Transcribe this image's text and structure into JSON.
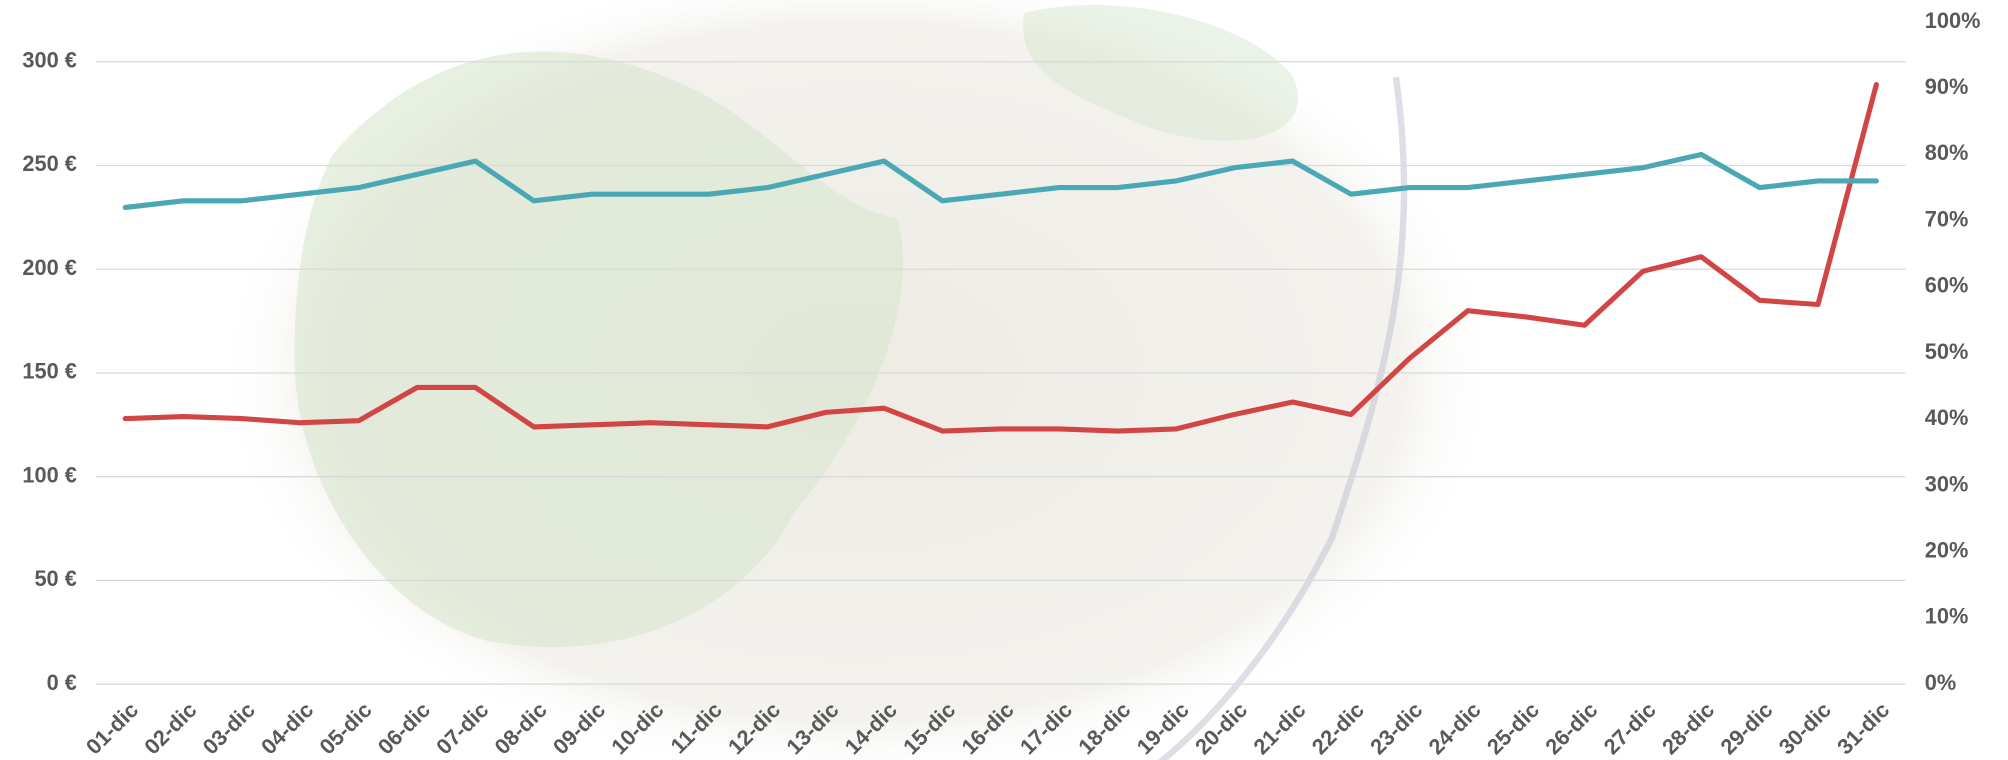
{
  "chart_data": {
    "type": "line",
    "categories": [
      "01-dic",
      "02-dic",
      "03-dic",
      "04-dic",
      "05-dic",
      "06-dic",
      "07-dic",
      "08-dic",
      "09-dic",
      "10-dic",
      "11-dic",
      "12-dic",
      "13-dic",
      "14-dic",
      "15-dic",
      "16-dic",
      "17-dic",
      "18-dic",
      "19-dic",
      "20-dic",
      "21-dic",
      "22-dic",
      "23-dic",
      "24-dic",
      "25-dic",
      "26-dic",
      "27-dic",
      "28-dic",
      "29-dic",
      "30-dic",
      "31-dic"
    ],
    "series": [
      {
        "color": "#d24545",
        "values": [
          128,
          129,
          128,
          126,
          127,
          143,
          143,
          124,
          125,
          126,
          125,
          124,
          131,
          133,
          122,
          123,
          123,
          122,
          123,
          130,
          136,
          130,
          157,
          180,
          177,
          173,
          199,
          206,
          185,
          183,
          289
        ]
      },
      {
        "color": "#4aa8b4",
        "axis": "y2",
        "values": [
          72,
          73,
          73,
          74,
          75,
          77,
          79,
          73,
          74,
          74,
          74,
          75,
          77,
          79,
          73,
          74,
          75,
          75,
          76,
          78,
          79,
          74,
          75,
          75,
          76,
          77,
          78,
          80,
          75,
          76,
          76
        ]
      }
    ],
    "ylim": [
      0,
      300
    ],
    "yticks": [
      {
        "value": 0,
        "label": "0 €"
      },
      {
        "value": 50,
        "label": "50 €"
      },
      {
        "value": 100,
        "label": "100 €"
      },
      {
        "value": 150,
        "label": "150 €"
      },
      {
        "value": 200,
        "label": "200 €"
      },
      {
        "value": 250,
        "label": "250 €"
      },
      {
        "value": 300,
        "label": "300 €"
      }
    ],
    "y2lim": [
      0,
      100
    ],
    "y2ticks": [
      {
        "value": 0,
        "label": "0%"
      },
      {
        "value": 10,
        "label": "10%"
      },
      {
        "value": 20,
        "label": "20%"
      },
      {
        "value": 30,
        "label": "30%"
      },
      {
        "value": 40,
        "label": "40%"
      },
      {
        "value": 50,
        "label": "50%"
      },
      {
        "value": 60,
        "label": "60%"
      },
      {
        "value": 70,
        "label": "70%"
      },
      {
        "value": 80,
        "label": "80%"
      },
      {
        "value": 90,
        "label": "90%"
      },
      {
        "value": 100,
        "label": "100%"
      }
    ],
    "grid": true
  }
}
